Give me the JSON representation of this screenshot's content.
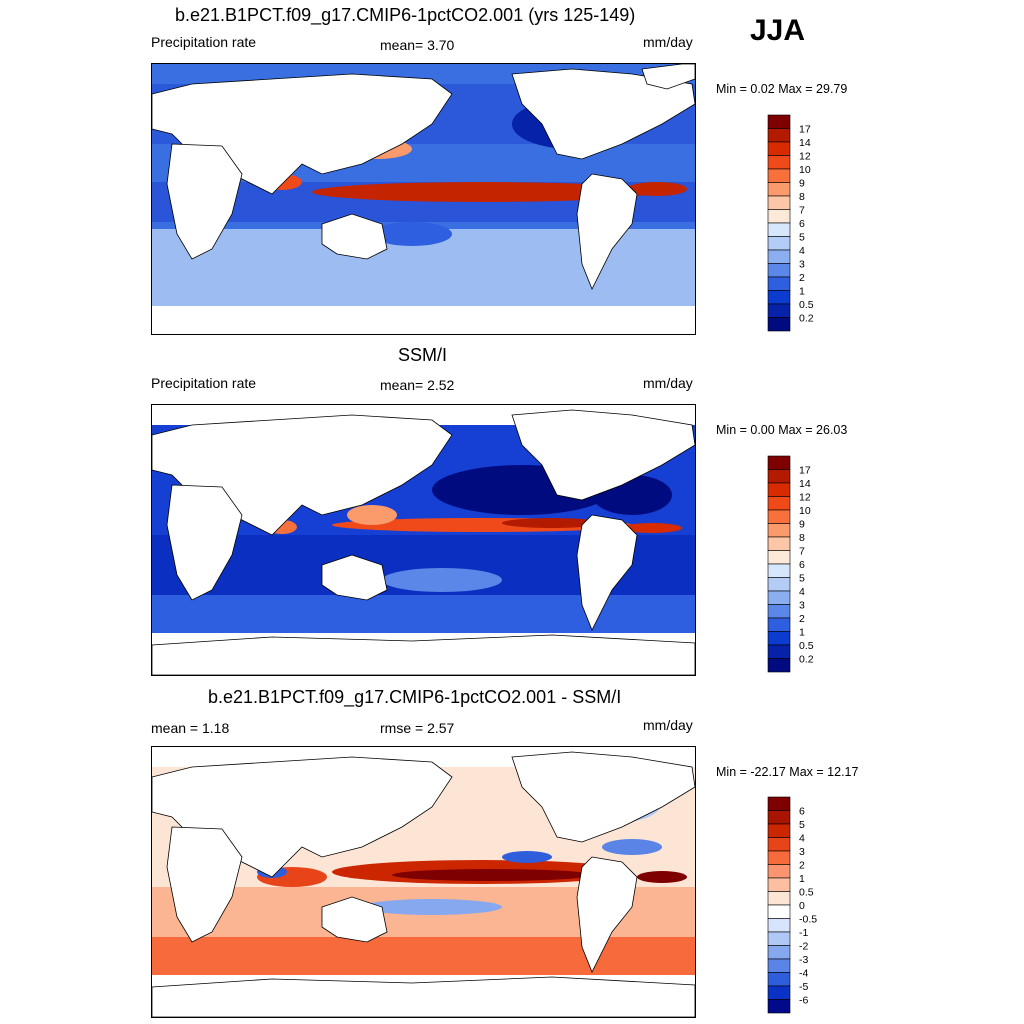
{
  "season": "JJA",
  "panels": [
    {
      "id": "model",
      "title": "b.e21.B1PCT.f09_g17.CMIP6-1pctCO2.001 (yrs 125-149)",
      "left_label": "Precipitation rate",
      "center_label": "mean=   3.70",
      "units": "mm/day",
      "minmax": "Min =   0.02 Max =  29.79",
      "colorbar": {
        "labels": [
          "17",
          "14",
          "12",
          "10",
          "9",
          "8",
          "7",
          "6",
          "5",
          "4",
          "3",
          "2",
          "1",
          "0.5",
          "0.2"
        ],
        "colors": [
          "#7f0000",
          "#b31a00",
          "#d92b00",
          "#f04a1a",
          "#f8703c",
          "#fb9a6a",
          "#fdc6a6",
          "#fde9d8",
          "#d6e6fb",
          "#b4cdf6",
          "#8aaef0",
          "#5b87e8",
          "#2e5fe0",
          "#0c3bd0",
          "#0522a8",
          "#000b80"
        ]
      }
    },
    {
      "id": "obs",
      "title": "SSM/I",
      "left_label": "Precipitation rate",
      "center_label": "mean=   2.52",
      "units": "mm/day",
      "minmax": "Min =   0.00 Max =  26.03",
      "colorbar": {
        "labels": [
          "17",
          "14",
          "12",
          "10",
          "9",
          "8",
          "7",
          "6",
          "5",
          "4",
          "3",
          "2",
          "1",
          "0.5",
          "0.2"
        ],
        "colors": [
          "#7f0000",
          "#b31a00",
          "#d92b00",
          "#f04a1a",
          "#f8703c",
          "#fb9a6a",
          "#fdc6a6",
          "#fde9d8",
          "#d6e6fb",
          "#b4cdf6",
          "#8aaef0",
          "#5b87e8",
          "#2e5fe0",
          "#0c3bd0",
          "#0522a8",
          "#000b80"
        ]
      }
    },
    {
      "id": "diff",
      "title": "b.e21.B1PCT.f09_g17.CMIP6-1pctCO2.001 - SSM/I",
      "left_label": "mean =   1.18",
      "center_label": "rmse =   2.57",
      "units": "mm/day",
      "minmax": "Min = -22.17 Max =  12.17",
      "colorbar": {
        "labels": [
          "6",
          "5",
          "4",
          "3",
          "2",
          "1",
          "0.5",
          "0",
          "-0.5",
          "-1",
          "-2",
          "-3",
          "-4",
          "-5",
          "-6"
        ],
        "colors": [
          "#7f0000",
          "#a81400",
          "#cc2600",
          "#e8441a",
          "#f66a3c",
          "#fb9570",
          "#fdbfa2",
          "#fde5d6",
          "#ffffff",
          "#d8e4fb",
          "#b0c8f5",
          "#86a8ef",
          "#5a85e6",
          "#2e5edc",
          "#0a32c6",
          "#000a8a"
        ]
      }
    }
  ]
}
